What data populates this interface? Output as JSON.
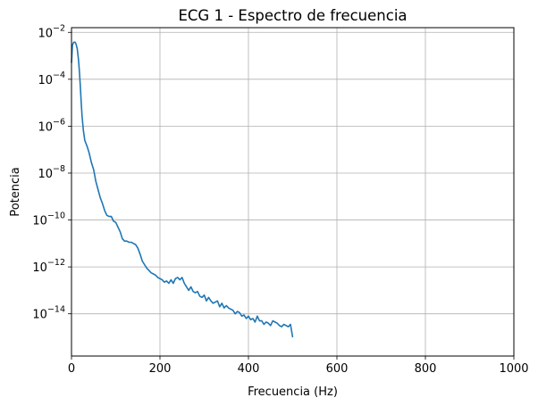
{
  "chart_data": {
    "type": "line",
    "title": "ECG 1 - Espectro de frecuencia",
    "xlabel": "Frecuencia (Hz)",
    "ylabel": "Potencia",
    "xlim": [
      0,
      1000
    ],
    "ylim_log10": [
      -15.8,
      -1.8
    ],
    "yscale": "log",
    "grid": true,
    "x_ticks": [
      0,
      200,
      400,
      600,
      800,
      1000
    ],
    "x_tick_labels": [
      "0",
      "200",
      "400",
      "600",
      "800",
      "1000"
    ],
    "y_tick_exponents": [
      -14,
      -12,
      -10,
      -8,
      -6,
      -4,
      -2
    ],
    "y_tick_base": "10",
    "line_color": "#1f77b4",
    "series": [
      {
        "x": [
          0,
          2,
          5,
          8,
          10,
          13,
          16,
          18,
          20,
          22,
          24,
          27,
          30,
          33,
          36,
          40,
          45,
          50,
          55,
          60,
          65,
          70,
          75,
          80,
          85,
          90,
          95,
          100,
          105,
          110,
          115,
          120,
          125,
          130,
          135,
          140,
          145,
          150,
          155,
          160,
          165,
          170,
          175,
          180,
          185,
          190,
          195,
          200,
          205,
          210,
          215,
          220,
          225,
          230,
          235,
          240,
          245,
          250,
          255,
          260,
          265,
          270,
          275,
          280,
          285,
          290,
          295,
          300,
          305,
          310,
          315,
          320,
          325,
          330,
          335,
          340,
          345,
          350,
          355,
          360,
          365,
          370,
          375,
          380,
          385,
          390,
          395,
          400,
          405,
          410,
          415,
          420,
          425,
          430,
          435,
          440,
          445,
          450,
          455,
          460,
          465,
          470,
          475,
          480,
          485,
          490,
          495,
          500
        ],
        "y_log10": [
          -3.3,
          -2.55,
          -2.42,
          -2.42,
          -2.48,
          -2.7,
          -3.2,
          -3.7,
          -4.3,
          -5.0,
          -5.6,
          -6.2,
          -6.6,
          -6.75,
          -6.9,
          -7.15,
          -7.55,
          -7.85,
          -8.35,
          -8.7,
          -9.05,
          -9.3,
          -9.6,
          -9.8,
          -9.85,
          -9.85,
          -10.05,
          -10.1,
          -10.3,
          -10.5,
          -10.8,
          -10.9,
          -10.9,
          -10.95,
          -10.95,
          -11.0,
          -11.05,
          -11.2,
          -11.45,
          -11.75,
          -11.9,
          -12.05,
          -12.15,
          -12.25,
          -12.3,
          -12.35,
          -12.45,
          -12.5,
          -12.55,
          -12.65,
          -12.6,
          -12.7,
          -12.55,
          -12.7,
          -12.5,
          -12.45,
          -12.55,
          -12.45,
          -12.7,
          -12.85,
          -13.0,
          -12.85,
          -13.05,
          -13.1,
          -13.05,
          -13.25,
          -13.3,
          -13.2,
          -13.45,
          -13.3,
          -13.45,
          -13.55,
          -13.5,
          -13.45,
          -13.7,
          -13.55,
          -13.75,
          -13.65,
          -13.75,
          -13.8,
          -13.85,
          -14.0,
          -13.9,
          -13.95,
          -14.1,
          -14.05,
          -14.2,
          -14.1,
          -14.25,
          -14.2,
          -14.35,
          -14.1,
          -14.3,
          -14.3,
          -14.45,
          -14.35,
          -14.4,
          -14.5,
          -14.3,
          -14.35,
          -14.4,
          -14.5,
          -14.55,
          -14.45,
          -14.5,
          -14.55,
          -14.45,
          -15.0
        ]
      }
    ]
  }
}
